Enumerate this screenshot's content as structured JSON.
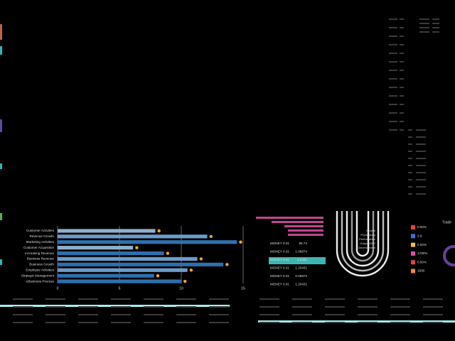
{
  "chart_data": {
    "type": "bar",
    "orientation": "horizontal",
    "categories": [
      "Customer Activities",
      "Revenue Growth",
      "Marketing Activities",
      "Customer Acquisition",
      "Increasing Revenue",
      "Business Revenue",
      "Business Growth",
      "Employee Activities",
      "Strategic Management",
      "eBusiness Process"
    ],
    "values": [
      7.9,
      12.1,
      14.5,
      6.1,
      8.6,
      11.3,
      13.4,
      10.5,
      7.8,
      10.0
    ],
    "targets": [
      8.2,
      12.4,
      14.8,
      6.4,
      8.9,
      11.6,
      13.7,
      10.8,
      8.1,
      10.3
    ],
    "colors": [
      "#8fb0cc",
      "#6c9cc8",
      "#2e70ad",
      "#8fb0cc",
      "#2e70ad",
      "#6c9cc8",
      "#2e70ad",
      "#6c9cc8",
      "#2e70ad",
      "#2e70ad"
    ],
    "target_color": "#f5a623",
    "xlim": [
      0,
      15
    ],
    "xticks": [
      0,
      5,
      10,
      15
    ],
    "grid": true
  },
  "money_table": {
    "rows": [
      [
        "MONEY 0.01",
        "95.74"
      ],
      [
        "MONEY 0.01",
        "1.06874"
      ],
      [
        "MONEY 0.01",
        "1.2431"
      ],
      [
        "MONEY 0.01",
        "1.20431"
      ],
      [
        "MONEY 0.01",
        "0.06872"
      ],
      [
        "MONEY 0.01",
        "1.20431"
      ]
    ]
  },
  "arc_labels": [
    "Growth",
    "Productivity",
    "Performance",
    "Output GDP",
    "Development"
  ],
  "legend": [
    {
      "color": "#e0434b",
      "label": "0.50%"
    },
    {
      "color": "#3d6fd6",
      "label": "3.9"
    },
    {
      "color": "#f2c12e",
      "label": "0.50%"
    },
    {
      "color": "#e04fa0",
      "label": "1700%"
    },
    {
      "color": "#e0434b",
      "label": "0.50%"
    },
    {
      "color": "#f28c28",
      "label": "1500"
    }
  ],
  "side_title": "Trade"
}
